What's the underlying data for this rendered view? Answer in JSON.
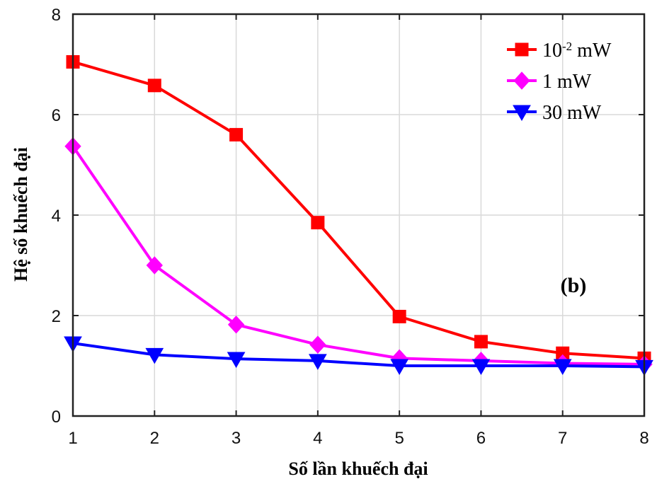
{
  "chart_data": {
    "type": "line",
    "xlabel": "Số lần khuếch đại",
    "ylabel": "Hệ số khuếch đại",
    "xlim": [
      1,
      8
    ],
    "ylim": [
      0,
      8
    ],
    "x_ticks": [
      1,
      2,
      3,
      4,
      5,
      6,
      7,
      8
    ],
    "y_ticks": [
      0,
      2,
      4,
      6,
      8
    ],
    "grid": true,
    "legend_position": "top-right",
    "x": [
      1,
      2,
      3,
      4,
      5,
      6,
      7,
      8
    ],
    "series": [
      {
        "name_base": "10",
        "name_exp": "-2",
        "name_unit": " mW",
        "color": "#ff0000",
        "marker": "square",
        "values": [
          7.05,
          6.58,
          5.6,
          3.85,
          1.98,
          1.48,
          1.25,
          1.15
        ]
      },
      {
        "name": "1 mW",
        "color": "#ff00ff",
        "marker": "diamond",
        "values": [
          5.37,
          3.0,
          1.82,
          1.42,
          1.15,
          1.1,
          1.05,
          1.03
        ]
      },
      {
        "name": "30 mW",
        "color": "#0000ff",
        "marker": "triangle-down",
        "values": [
          1.45,
          1.22,
          1.14,
          1.1,
          1.0,
          1.0,
          1.0,
          0.98
        ]
      }
    ],
    "annotation": "(b)"
  }
}
